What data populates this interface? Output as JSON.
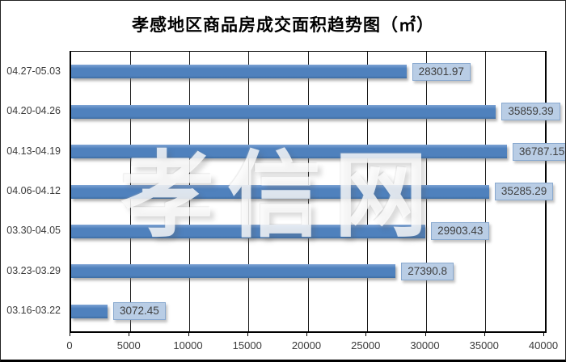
{
  "figure": {
    "watermark": "孝信网"
  },
  "chart_data": {
    "type": "bar",
    "orientation": "horizontal",
    "title": "孝感地区商品房成交面积趋势图（㎡）",
    "categories": [
      "04.27-05.03",
      "04.20-04.26",
      "04.13-04.19",
      "04.06-04.12",
      "03.30-04.05",
      "03.23-03.29",
      "03.16-03.22"
    ],
    "values": [
      28301.97,
      35859.39,
      36787.15,
      35285.29,
      29903.43,
      27390.8,
      3072.45
    ],
    "value_labels": [
      "28301.97",
      "35859.39",
      "36787.15",
      "35285.29",
      "29903.43",
      "27390.8",
      "3072.45"
    ],
    "xlabel": "",
    "ylabel": "",
    "xlim": [
      0,
      40000
    ],
    "x_ticks": [
      0,
      5000,
      10000,
      15000,
      20000,
      25000,
      30000,
      35000,
      40000
    ],
    "x_tick_labels": [
      "0",
      "5000",
      "10000",
      "15000",
      "20000",
      "25000",
      "30000",
      "35000",
      "40000"
    ],
    "grid": "vertical",
    "legend": "none",
    "colors": {
      "bar": "#4f81bd",
      "value_box_fill": "#b9cde5",
      "value_box_border": "#89a9cf",
      "value_text": "#3f3f3f",
      "gridline": "#1a1a1a",
      "title_text": "#000000"
    }
  }
}
